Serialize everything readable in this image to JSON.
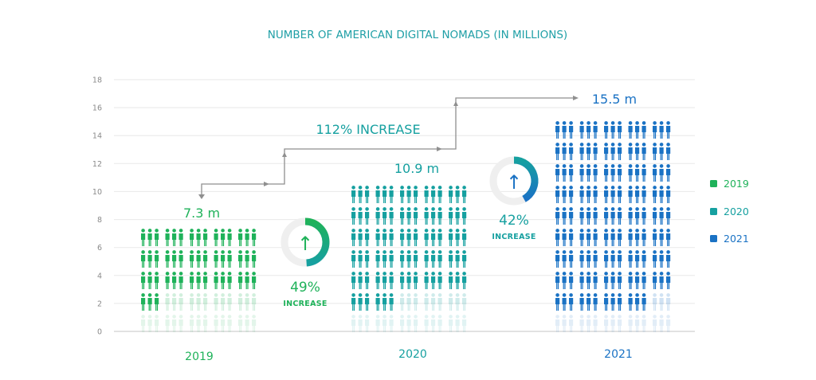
{
  "chart_data": {
    "type": "bar",
    "style": "pictogram",
    "title": "NUMBER OF AMERICAN DIGITAL NOMADS (IN MILLIONS)",
    "xlabel": "",
    "ylabel": "",
    "ylim": [
      0,
      18
    ],
    "yticks": [
      "0",
      "2",
      "4",
      "6",
      "8",
      "10",
      "12",
      "14",
      "16",
      "18"
    ],
    "grid": true,
    "legend_position": "right",
    "categories": [
      "2019",
      "2020",
      "2021"
    ],
    "values": [
      7.3,
      10.9,
      15.5
    ],
    "value_labels": [
      "7.3 m",
      "10.9 m",
      "15.5 m"
    ],
    "colors": [
      "#1fb25a",
      "#16a0a0",
      "#1a72c4"
    ],
    "legend": [
      "2019",
      "2020",
      "2021"
    ],
    "annotations": {
      "total_increase": "112% INCREASE",
      "increase_2019_2020": {
        "percent": "49%",
        "label": "INCREASE",
        "value": 49
      },
      "increase_2020_2021": {
        "percent": "42%",
        "label": "INCREASE",
        "value": 42
      }
    }
  }
}
